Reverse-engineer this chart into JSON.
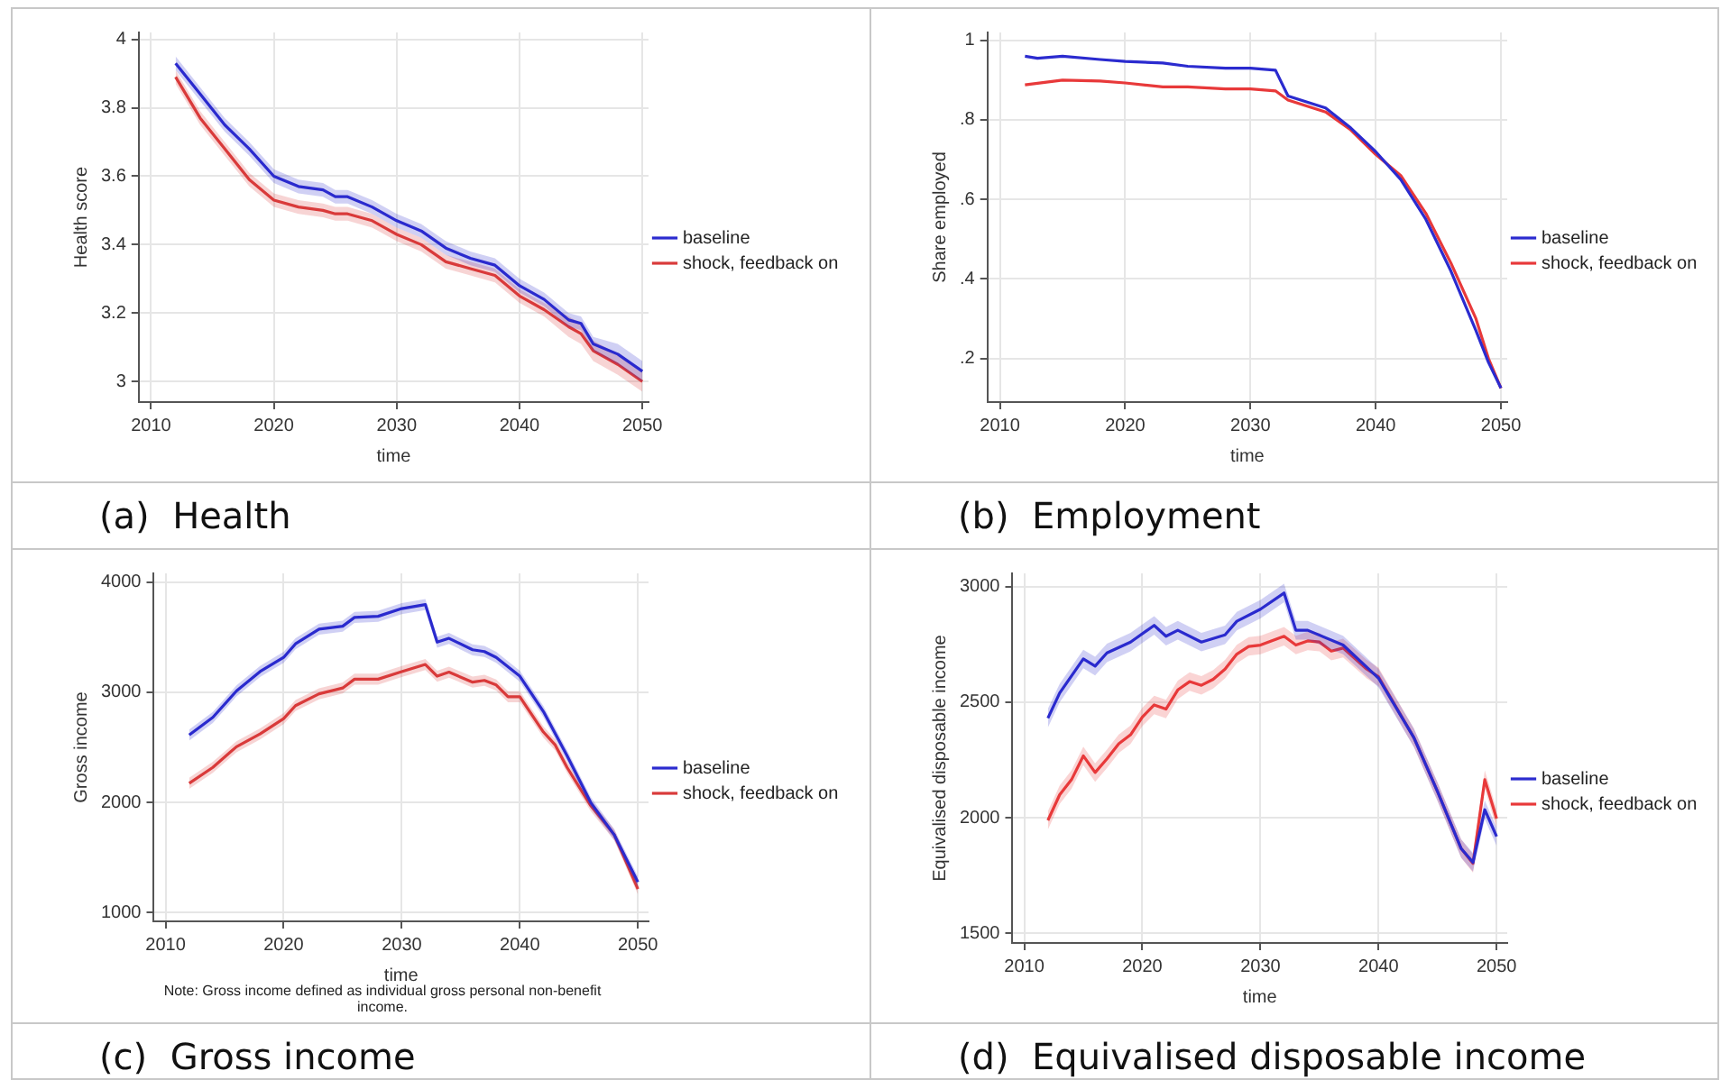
{
  "chart_data": [
    {
      "type": "line",
      "title": "(a)  Health",
      "xlabel": "time",
      "ylabel": "Health score",
      "xlim": [
        2009,
        2050.5
      ],
      "xticks": [
        2010,
        2020,
        2030,
        2040,
        2050
      ],
      "ylim": [
        2.94,
        4.02
      ],
      "yticks": [
        3,
        3.2,
        3.4,
        3.6,
        3.8,
        4
      ],
      "grid": true,
      "legend": "right",
      "marker": "none",
      "line_style": "solid",
      "series": [
        {
          "name": "baseline",
          "color": "#2b2bcf",
          "x": [
            2012,
            2014,
            2016,
            2018,
            2020,
            2022,
            2024,
            2025,
            2026,
            2028,
            2030,
            2032,
            2034,
            2036,
            2038,
            2040,
            2042,
            2044,
            2045,
            2046,
            2048,
            2050
          ],
          "values": [
            3.93,
            3.84,
            3.75,
            3.68,
            3.6,
            3.57,
            3.56,
            3.54,
            3.54,
            3.51,
            3.47,
            3.44,
            3.39,
            3.36,
            3.34,
            3.28,
            3.24,
            3.18,
            3.17,
            3.11,
            3.08,
            3.03
          ],
          "lower": [
            3.91,
            3.82,
            3.73,
            3.66,
            3.58,
            3.55,
            3.54,
            3.52,
            3.52,
            3.49,
            3.45,
            3.42,
            3.37,
            3.34,
            3.32,
            3.26,
            3.22,
            3.16,
            3.15,
            3.09,
            3.05,
            3.0
          ],
          "upper": [
            3.95,
            3.86,
            3.77,
            3.7,
            3.62,
            3.59,
            3.58,
            3.56,
            3.56,
            3.53,
            3.49,
            3.46,
            3.41,
            3.38,
            3.36,
            3.3,
            3.26,
            3.2,
            3.19,
            3.13,
            3.11,
            3.06
          ]
        },
        {
          "name": "shock, feedback on",
          "color": "#d93a3a",
          "x": [
            2012,
            2014,
            2016,
            2018,
            2020,
            2022,
            2024,
            2025,
            2026,
            2028,
            2030,
            2032,
            2034,
            2036,
            2038,
            2040,
            2042,
            2044,
            2045,
            2046,
            2048,
            2050
          ],
          "values": [
            3.89,
            3.77,
            3.68,
            3.59,
            3.53,
            3.51,
            3.5,
            3.49,
            3.49,
            3.47,
            3.43,
            3.4,
            3.35,
            3.33,
            3.31,
            3.25,
            3.21,
            3.16,
            3.14,
            3.09,
            3.05,
            3.0
          ],
          "lower": [
            3.87,
            3.75,
            3.66,
            3.57,
            3.51,
            3.49,
            3.48,
            3.47,
            3.47,
            3.45,
            3.41,
            3.38,
            3.33,
            3.31,
            3.29,
            3.23,
            3.19,
            3.13,
            3.11,
            3.06,
            3.02,
            2.97
          ],
          "upper": [
            3.91,
            3.79,
            3.7,
            3.61,
            3.55,
            3.53,
            3.52,
            3.51,
            3.51,
            3.49,
            3.45,
            3.42,
            3.37,
            3.35,
            3.33,
            3.27,
            3.23,
            3.19,
            3.17,
            3.12,
            3.08,
            3.03
          ]
        }
      ]
    },
    {
      "type": "line",
      "title": "(b)  Employment",
      "xlabel": "time",
      "ylabel": "Share employed",
      "xlim": [
        2009,
        2050.5
      ],
      "xticks": [
        2010,
        2020,
        2030,
        2040,
        2050
      ],
      "ylim": [
        0.09,
        1.02
      ],
      "yticks": [
        {
          "value": 0.2,
          "label": ".2"
        },
        {
          "value": 0.4,
          "label": ".4"
        },
        {
          "value": 0.6,
          "label": ".6"
        },
        {
          "value": 0.8,
          "label": ".8"
        },
        1
      ],
      "grid": true,
      "legend": "right",
      "marker": "none",
      "line_style": "solid",
      "series": [
        {
          "name": "baseline",
          "color": "#2b2bcf",
          "x": [
            2012,
            2013,
            2015,
            2018,
            2020,
            2023,
            2025,
            2028,
            2030,
            2032,
            2033,
            2036,
            2038,
            2040,
            2042,
            2044,
            2046,
            2048,
            2049,
            2050
          ],
          "values": [
            0.96,
            0.955,
            0.96,
            0.952,
            0.947,
            0.943,
            0.935,
            0.93,
            0.93,
            0.925,
            0.86,
            0.83,
            0.78,
            0.72,
            0.65,
            0.55,
            0.42,
            0.27,
            0.19,
            0.125
          ]
        },
        {
          "name": "shock, feedback on",
          "color": "#e8393a",
          "x": [
            2012,
            2015,
            2018,
            2020,
            2023,
            2025,
            2028,
            2030,
            2032,
            2033,
            2036,
            2038,
            2040,
            2042,
            2044,
            2046,
            2048,
            2049,
            2050
          ],
          "values": [
            0.888,
            0.9,
            0.898,
            0.893,
            0.883,
            0.883,
            0.878,
            0.878,
            0.873,
            0.85,
            0.82,
            0.775,
            0.713,
            0.66,
            0.565,
            0.44,
            0.3,
            0.2,
            0.125
          ]
        }
      ]
    },
    {
      "type": "line",
      "title": "(c)  Gross income",
      "xlabel": "time",
      "ylabel": "Gross income",
      "xlim": [
        2009,
        2050.9
      ],
      "xticks": [
        2010,
        2020,
        2030,
        2040,
        2050
      ],
      "ylim": [
        920,
        4080
      ],
      "yticks": [
        1000,
        2000,
        3000,
        4000
      ],
      "grid": true,
      "legend": "right",
      "marker": "none",
      "line_style": "solid",
      "annotations": [
        "Note: Gross income defined as individual gross personal non-benefit income."
      ],
      "series": [
        {
          "name": "baseline",
          "color": "#2b2bcf",
          "x": [
            2012,
            2014,
            2016,
            2018,
            2020,
            2021,
            2023,
            2025,
            2026,
            2028,
            2030,
            2032,
            2033,
            2034,
            2036,
            2037,
            2038,
            2040,
            2042,
            2044,
            2046,
            2048,
            2050
          ],
          "values": [
            2612,
            2772,
            3012,
            3188,
            3317,
            3440,
            3573,
            3600,
            3680,
            3690,
            3760,
            3797,
            3455,
            3490,
            3386,
            3370,
            3317,
            3146,
            2825,
            2425,
            2000,
            1705,
            1277
          ],
          "lower": [
            2562,
            2722,
            2962,
            3138,
            3267,
            3390,
            3523,
            3550,
            3630,
            3640,
            3710,
            3747,
            3405,
            3440,
            3336,
            3320,
            3267,
            3096,
            2775,
            2375,
            1950,
            1655,
            1227
          ],
          "upper": [
            2662,
            2822,
            3062,
            3238,
            3367,
            3490,
            3623,
            3650,
            3730,
            3740,
            3810,
            3847,
            3505,
            3540,
            3436,
            3420,
            3367,
            3196,
            2875,
            2475,
            2050,
            1755,
            1327
          ]
        },
        {
          "name": "shock, feedback on",
          "color": "#d93a3a",
          "x": [
            2012,
            2014,
            2016,
            2018,
            2020,
            2021,
            2023,
            2025,
            2026,
            2028,
            2030,
            2032,
            2033,
            2034,
            2036,
            2037,
            2038,
            2039,
            2040,
            2042,
            2043,
            2044,
            2046,
            2048,
            2050
          ],
          "values": [
            2174,
            2318,
            2505,
            2622,
            2761,
            2879,
            2986,
            3039,
            3119,
            3119,
            3188,
            3253,
            3146,
            3183,
            3092,
            3108,
            3066,
            2959,
            2959,
            2639,
            2521,
            2318,
            1971,
            1705,
            1213
          ],
          "lower": [
            2124,
            2268,
            2455,
            2572,
            2711,
            2829,
            2936,
            2989,
            3069,
            3069,
            3138,
            3203,
            3096,
            3133,
            3042,
            3058,
            3016,
            2909,
            2909,
            2589,
            2471,
            2268,
            1921,
            1655,
            1163
          ],
          "upper": [
            2224,
            2368,
            2555,
            2672,
            2811,
            2929,
            3036,
            3089,
            3169,
            3169,
            3238,
            3303,
            3196,
            3233,
            3142,
            3158,
            3116,
            3009,
            3009,
            2689,
            2571,
            2368,
            2021,
            1755,
            1263
          ]
        }
      ]
    },
    {
      "type": "line",
      "title": "(d)  Equivalised disposable income",
      "xlabel": "time",
      "ylabel": "Equivalised disposable income",
      "xlim": [
        2009,
        2050.9
      ],
      "xticks": [
        2010,
        2020,
        2030,
        2040,
        2050
      ],
      "ylim": [
        1459,
        3057
      ],
      "yticks": [
        1500,
        2000,
        2500,
        3000
      ],
      "grid": true,
      "legend": "right",
      "marker": "none",
      "line_style": "solid",
      "series": [
        {
          "name": "baseline",
          "color": "#2b2bcf",
          "x": [
            2012,
            2013,
            2015,
            2016,
            2017,
            2019,
            2021,
            2022,
            2023,
            2025,
            2027,
            2028,
            2030,
            2032,
            2033,
            2034,
            2037,
            2040,
            2043,
            2045,
            2047,
            2048,
            2049,
            2050
          ],
          "values": [
            2431,
            2540,
            2687,
            2656,
            2713,
            2760,
            2832,
            2785,
            2811,
            2760,
            2791,
            2850,
            2902,
            2972,
            2811,
            2811,
            2747,
            2604,
            2346,
            2113,
            1867,
            1808,
            2035,
            1919
          ],
          "lower": [
            2391,
            2500,
            2647,
            2616,
            2673,
            2720,
            2792,
            2745,
            2771,
            2720,
            2751,
            2810,
            2862,
            2932,
            2771,
            2771,
            2707,
            2564,
            2306,
            2073,
            1827,
            1768,
            1995,
            1879
          ],
          "upper": [
            2471,
            2580,
            2727,
            2696,
            2753,
            2800,
            2872,
            2825,
            2851,
            2800,
            2831,
            2890,
            2942,
            3012,
            2851,
            2851,
            2787,
            2644,
            2386,
            2153,
            1907,
            1848,
            2075,
            1959
          ]
        },
        {
          "name": "shock, feedback on",
          "color": "#e8393a",
          "x": [
            2012,
            2013,
            2014,
            2015,
            2016,
            2017,
            2018,
            2019,
            2020,
            2021,
            2022,
            2023,
            2024,
            2025,
            2026,
            2027,
            2028,
            2029,
            2030,
            2032,
            2033,
            2034,
            2035,
            2036,
            2037,
            2039,
            2040,
            2043,
            2045,
            2047,
            2048,
            2049,
            2050
          ],
          "values": [
            1989,
            2100,
            2165,
            2268,
            2196,
            2255,
            2320,
            2359,
            2436,
            2488,
            2470,
            2553,
            2589,
            2573,
            2599,
            2643,
            2708,
            2741,
            2747,
            2785,
            2747,
            2765,
            2760,
            2721,
            2734,
            2643,
            2610,
            2346,
            2113,
            1867,
            1803,
            2165,
            1997
          ],
          "lower": [
            1949,
            2060,
            2125,
            2228,
            2156,
            2215,
            2280,
            2319,
            2396,
            2448,
            2430,
            2513,
            2549,
            2533,
            2559,
            2603,
            2668,
            2701,
            2707,
            2745,
            2707,
            2725,
            2720,
            2681,
            2694,
            2603,
            2570,
            2306,
            2073,
            1827,
            1763,
            2125,
            1957
          ],
          "upper": [
            2029,
            2140,
            2205,
            2308,
            2236,
            2295,
            2360,
            2399,
            2476,
            2528,
            2510,
            2593,
            2629,
            2613,
            2639,
            2683,
            2748,
            2781,
            2787,
            2825,
            2787,
            2805,
            2800,
            2761,
            2774,
            2683,
            2650,
            2386,
            2153,
            1907,
            1843,
            2205,
            2037
          ]
        }
      ]
    }
  ]
}
